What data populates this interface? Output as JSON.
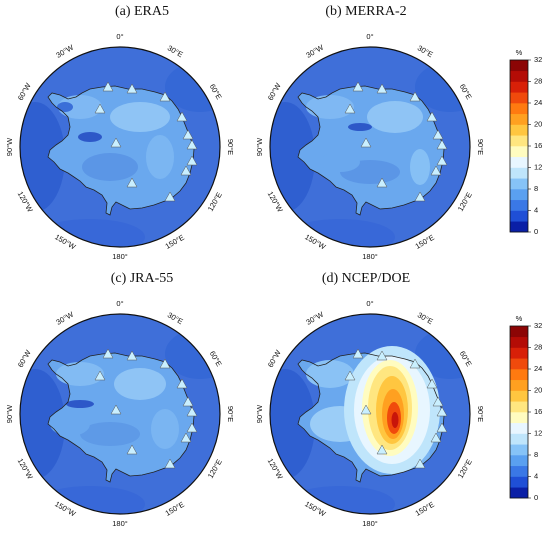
{
  "panels": [
    {
      "title": "(a) ERA5",
      "field": "era5"
    },
    {
      "title": "(b) MERRA-2",
      "field": "merra2"
    },
    {
      "title": "(c) JRA-55",
      "field": "jra55"
    },
    {
      "title": "(d) NCEP/DOE",
      "field": "ncep"
    }
  ],
  "longitude_labels": [
    "0°",
    "30°E",
    "60°E",
    "90°E",
    "120°E",
    "150°E",
    "180°",
    "150°W",
    "120°W",
    "90°W",
    "60°W",
    "30°W"
  ],
  "colorbar": {
    "unit": "%",
    "ticks": [
      "32",
      "28",
      "24",
      "20",
      "16",
      "12",
      "8",
      "4",
      "0"
    ],
    "colors": [
      "#0a1fa6",
      "#1f4fd6",
      "#3a78e6",
      "#5aa0f0",
      "#86c3f7",
      "#bfe5fb",
      "#e8f6ff",
      "#fffcc0",
      "#ffe680",
      "#ffc640",
      "#ffa020",
      "#ff7a10",
      "#f04a0c",
      "#d82008",
      "#b40c06",
      "#8c0505"
    ]
  },
  "colors": {
    "ocean": "#3f6fd9",
    "land_base": "#6aa8ee",
    "coast": "#222222",
    "station": "#c9efff"
  }
}
